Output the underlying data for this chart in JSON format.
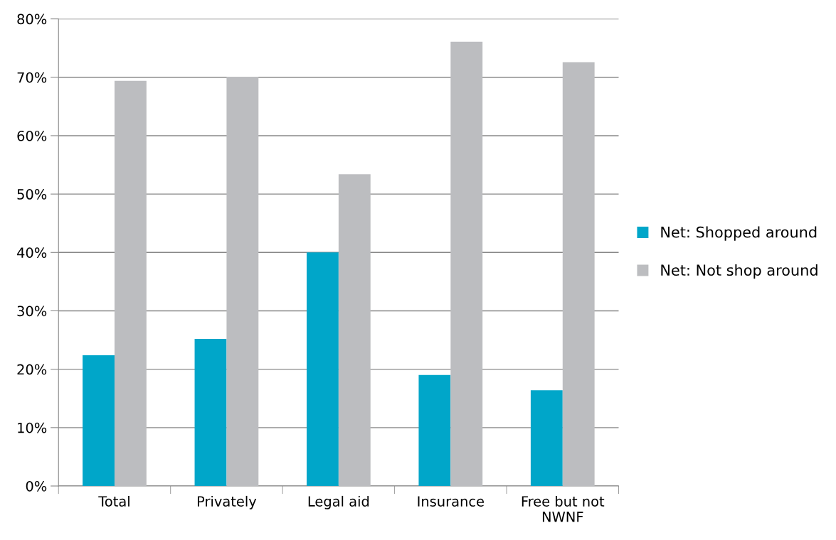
{
  "chart_data": {
    "type": "bar",
    "categories": [
      "Total",
      "Privately",
      "Legal aid",
      "Insurance",
      "Free but not\nNWNF"
    ],
    "series": [
      {
        "name": "Net: Shopped around",
        "color": "#00a6c9",
        "values": [
          22.4,
          25.2,
          40,
          19,
          16.4
        ]
      },
      {
        "name": "Net: Not shop around",
        "color": "#bcbdc0",
        "values": [
          69.4,
          70.1,
          53.4,
          76.1,
          72.6
        ]
      }
    ],
    "ylim": [
      0,
      80
    ],
    "yticks": [
      {
        "value": 0,
        "label": "0%"
      },
      {
        "value": 10,
        "label": "10%"
      },
      {
        "value": 20,
        "label": "20%"
      },
      {
        "value": 30,
        "label": "30%"
      },
      {
        "value": 40,
        "label": "40%"
      },
      {
        "value": 50,
        "label": "50%"
      },
      {
        "value": 60,
        "label": "60%"
      },
      {
        "value": 70,
        "label": "70%"
      },
      {
        "value": 80,
        "label": "80%"
      }
    ],
    "grid": "y",
    "legend": "right"
  }
}
